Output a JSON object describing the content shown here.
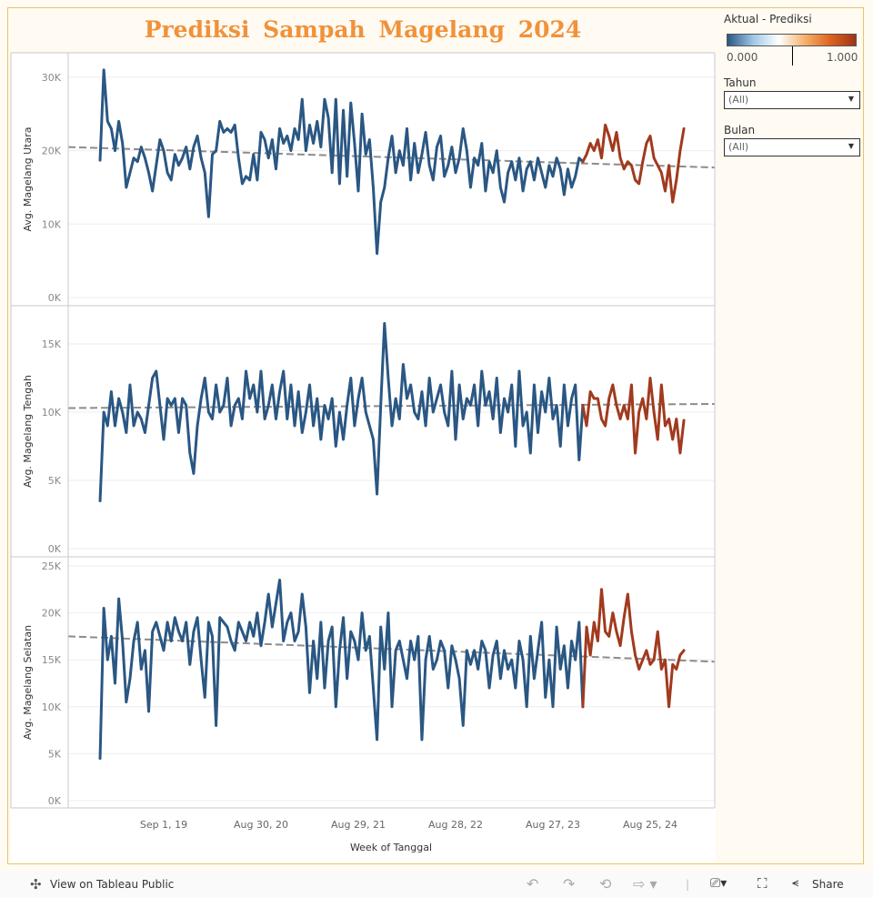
{
  "title": "Prediksi Sampah Magelang 2024",
  "legend": {
    "title": "Aktual - Prediksi",
    "min_label": "0.000",
    "max_label": "1.000",
    "marker_value": 0.5,
    "gradient": [
      "#2a5783",
      "#9fc6e6",
      "#ffffff",
      "#f7b26b",
      "#e0631f",
      "#9c3518"
    ]
  },
  "filters": [
    {
      "label": "Tahun",
      "value": "(All)"
    },
    {
      "label": "Bulan",
      "value": "(All)"
    }
  ],
  "toolbar": {
    "view_label": "View on Tableau Public",
    "share_label": "Share",
    "icons": [
      "tableau-logo-icon",
      "undo-icon",
      "redo-icon",
      "revert-icon",
      "refresh-icon",
      "download-icon",
      "fullscreen-icon",
      "share-icon"
    ]
  },
  "colors": {
    "actual": "#2a5783",
    "prediction": "#a13a1e",
    "trend": "#8c8c8c",
    "title": "#f0923a"
  },
  "chart_data": {
    "type": "line",
    "xlabel": "Week of Tanggal",
    "x_ticks": [
      {
        "label": "Sep 1, 19",
        "date": "2019-09-01"
      },
      {
        "label": "Aug 30, 20",
        "date": "2020-08-30"
      },
      {
        "label": "Aug 29, 21",
        "date": "2021-08-29"
      },
      {
        "label": "Aug 28, 22",
        "date": "2022-08-28"
      },
      {
        "label": "Aug 27, 23",
        "date": "2023-08-27"
      },
      {
        "label": "Aug 25, 24",
        "date": "2024-08-25"
      }
    ],
    "grid": true,
    "actual_dates": [
      "2019-01-06",
      "2019-01-20",
      "2019-02-03",
      "2019-02-17",
      "2019-03-03",
      "2019-03-17",
      "2019-03-31",
      "2019-04-14",
      "2019-04-28",
      "2019-05-12",
      "2019-05-26",
      "2019-06-09",
      "2019-06-23",
      "2019-07-07",
      "2019-07-21",
      "2019-08-04",
      "2019-08-18",
      "2019-09-01",
      "2019-09-15",
      "2019-09-29",
      "2019-10-13",
      "2019-10-27",
      "2019-11-10",
      "2019-11-24",
      "2019-12-08",
      "2019-12-22",
      "2020-01-05",
      "2020-01-19",
      "2020-02-02",
      "2020-02-16",
      "2020-03-01",
      "2020-03-15",
      "2020-03-29",
      "2020-04-12",
      "2020-04-26",
      "2020-05-10",
      "2020-05-24",
      "2020-06-07",
      "2020-06-21",
      "2020-07-05",
      "2020-07-19",
      "2020-08-02",
      "2020-08-16",
      "2020-08-30",
      "2020-09-13",
      "2020-09-27",
      "2020-10-11",
      "2020-10-25",
      "2020-11-08",
      "2020-11-22",
      "2020-12-06",
      "2020-12-20",
      "2021-01-03",
      "2021-01-17",
      "2021-01-31",
      "2021-02-14",
      "2021-02-28",
      "2021-03-14",
      "2021-03-28",
      "2021-04-11",
      "2021-04-25",
      "2021-05-09",
      "2021-05-23",
      "2021-06-06",
      "2021-06-20",
      "2021-07-04",
      "2021-07-18",
      "2021-08-01",
      "2021-08-15",
      "2021-08-29",
      "2021-09-12",
      "2021-09-26",
      "2021-10-10",
      "2021-10-24",
      "2021-11-07",
      "2021-11-21",
      "2021-12-05",
      "2021-12-19",
      "2022-01-02",
      "2022-01-16",
      "2022-01-30",
      "2022-02-13",
      "2022-02-27",
      "2022-03-13",
      "2022-03-27",
      "2022-04-10",
      "2022-04-24",
      "2022-05-08",
      "2022-05-22",
      "2022-06-05",
      "2022-06-19",
      "2022-07-03",
      "2022-07-17",
      "2022-07-31",
      "2022-08-14",
      "2022-08-28",
      "2022-09-11",
      "2022-09-25",
      "2022-10-09",
      "2022-10-23",
      "2022-11-06",
      "2022-11-20",
      "2022-12-04",
      "2022-12-18",
      "2023-01-01",
      "2023-01-15",
      "2023-01-29",
      "2023-02-12",
      "2023-02-26",
      "2023-03-12",
      "2023-03-26",
      "2023-04-09",
      "2023-04-23",
      "2023-05-07",
      "2023-05-21",
      "2023-06-04",
      "2023-06-18",
      "2023-07-02",
      "2023-07-16",
      "2023-07-30",
      "2023-08-13",
      "2023-08-27",
      "2023-09-10",
      "2023-09-24",
      "2023-10-08",
      "2023-10-22",
      "2023-11-05",
      "2023-11-19",
      "2023-12-03",
      "2023-12-17"
    ],
    "prediction_dates": [
      "2023-12-31",
      "2024-01-14",
      "2024-01-28",
      "2024-02-11",
      "2024-02-25",
      "2024-03-10",
      "2024-03-24",
      "2024-04-07",
      "2024-04-21",
      "2024-05-05",
      "2024-05-19",
      "2024-06-02",
      "2024-06-16",
      "2024-06-30",
      "2024-07-14",
      "2024-07-28",
      "2024-08-11",
      "2024-08-25",
      "2024-09-08",
      "2024-09-22",
      "2024-10-06",
      "2024-10-20",
      "2024-11-03",
      "2024-11-17",
      "2024-12-01",
      "2024-12-15",
      "2024-12-29"
    ],
    "panels": [
      {
        "ylabel": "Avg. Magelang Utara",
        "ylim": [
          0,
          32000
        ],
        "y_ticks": [
          {
            "label": "0K",
            "value": 0
          },
          {
            "label": "10K",
            "value": 10000
          },
          {
            "label": "20K",
            "value": 20000
          },
          {
            "label": "30K",
            "value": 30000
          }
        ],
        "trend": {
          "start": 20500,
          "end": 17700
        },
        "actual": [
          18700,
          31000,
          24000,
          23000,
          20000,
          24000,
          21000,
          15000,
          17000,
          19000,
          18500,
          20500,
          19000,
          17000,
          14500,
          18000,
          21500,
          20000,
          17000,
          16000,
          19500,
          18000,
          19000,
          20500,
          17500,
          20500,
          22000,
          19000,
          17000,
          11000,
          19500,
          20000,
          24000,
          22500,
          23000,
          22500,
          23500,
          19000,
          15500,
          16500,
          16000,
          19500,
          16000,
          22500,
          21500,
          19000,
          21500,
          17500,
          23000,
          21000,
          22000,
          20000,
          23000,
          21500,
          27000,
          20000,
          23500,
          21000,
          24000,
          20500,
          27000,
          24500,
          17000,
          27000,
          15500,
          25500,
          16500,
          26500,
          21000,
          14500,
          25000,
          19500,
          21500,
          15000,
          6000,
          13000,
          15000,
          19000,
          22000,
          17000,
          20000,
          18000,
          23000,
          16000,
          21000,
          17000,
          19500,
          22500,
          18000,
          16000,
          20500,
          22000,
          16500,
          18000,
          20500,
          17000,
          19000,
          23000,
          20000,
          15000,
          19000,
          18000,
          21000,
          14500,
          18500,
          17000,
          20000,
          15000,
          13000,
          17000,
          18500,
          16000,
          19000,
          14500,
          17500,
          18500,
          16000,
          19000,
          17000,
          15000,
          18000,
          16500,
          19000,
          17500,
          14000,
          17500,
          15000,
          16500,
          19000,
          18500
        ],
        "prediction": [
          19500,
          21000,
          20000,
          21500,
          19000,
          23500,
          22000,
          20000,
          22500,
          19000,
          17500,
          18500,
          18000,
          16000,
          15500,
          18500,
          21000,
          22000,
          19000,
          18000,
          17000,
          14500,
          18000,
          13000,
          16000,
          20000,
          23000
        ]
      },
      {
        "ylabel": "Avg. Magelang Tengah",
        "ylim": [
          0,
          17000
        ],
        "y_ticks": [
          {
            "label": "0K",
            "value": 0
          },
          {
            "label": "5K",
            "value": 5000
          },
          {
            "label": "10K",
            "value": 10000
          },
          {
            "label": "15K",
            "value": 15000
          }
        ],
        "trend": {
          "start": 10300,
          "end": 10600
        },
        "actual": [
          3500,
          10000,
          9000,
          11500,
          9000,
          11000,
          10000,
          8500,
          12000,
          9000,
          10000,
          9500,
          8500,
          10500,
          12500,
          13000,
          10500,
          8000,
          11000,
          10500,
          11000,
          8500,
          11000,
          10500,
          7000,
          5500,
          9000,
          11000,
          12500,
          10000,
          9500,
          12000,
          10000,
          10500,
          12500,
          9000,
          10500,
          11000,
          9500,
          13000,
          11000,
          12000,
          10000,
          13000,
          9500,
          10500,
          12000,
          9500,
          11500,
          13000,
          9500,
          12000,
          9000,
          11500,
          8500,
          10000,
          12000,
          9000,
          11000,
          8000,
          10500,
          9500,
          11000,
          7500,
          10000,
          8000,
          10500,
          12500,
          9000,
          11000,
          12500,
          10000,
          9000,
          8000,
          4000,
          10500,
          16500,
          12500,
          9000,
          11000,
          9500,
          13500,
          11000,
          12000,
          10000,
          9500,
          11500,
          9000,
          12500,
          10000,
          11000,
          12000,
          10000,
          9000,
          13000,
          8000,
          12000,
          9500,
          11000,
          10500,
          12000,
          9000,
          13000,
          10500,
          11500,
          9500,
          12500,
          8500,
          11000,
          10000,
          12000,
          7500,
          13000,
          9000,
          10000,
          7000,
          12000,
          8500,
          11500,
          10000,
          12500,
          9500,
          10500,
          7500,
          12000,
          9000,
          11000,
          12000,
          6500,
          10500
        ],
        "prediction": [
          9000,
          11500,
          11000,
          11000,
          9500,
          9000,
          11000,
          12000,
          10500,
          9500,
          10500,
          9500,
          12000,
          7000,
          10000,
          11000,
          9500,
          12500,
          10000,
          8000,
          12000,
          9000,
          9500,
          8000,
          9500,
          7000,
          9400
        ]
      },
      {
        "ylabel": "Avg. Magelang Selatan",
        "ylim": [
          0,
          25000
        ],
        "y_ticks": [
          {
            "label": "0K",
            "value": 0
          },
          {
            "label": "5K",
            "value": 5000
          },
          {
            "label": "10K",
            "value": 10000
          },
          {
            "label": "15K",
            "value": 15000
          },
          {
            "label": "20K",
            "value": 20000
          },
          {
            "label": "25K",
            "value": 25000
          }
        ],
        "trend": {
          "start": 17500,
          "end": 14800
        },
        "actual": [
          4500,
          20500,
          15000,
          17500,
          12500,
          21500,
          17000,
          10500,
          13000,
          17000,
          19000,
          14000,
          16000,
          9500,
          18000,
          19000,
          17500,
          16000,
          19000,
          17000,
          19500,
          18000,
          17000,
          19000,
          14500,
          18000,
          19500,
          15000,
          11000,
          19000,
          17500,
          8000,
          19500,
          19000,
          18500,
          17000,
          16000,
          19000,
          18000,
          17000,
          19000,
          17500,
          20000,
          16500,
          19000,
          22000,
          18500,
          21000,
          23500,
          17000,
          19000,
          20000,
          17000,
          18000,
          22000,
          18500,
          11500,
          17000,
          13000,
          19000,
          12000,
          17000,
          18500,
          10000,
          16000,
          19500,
          13000,
          18000,
          17000,
          15000,
          20000,
          16000,
          17500,
          12000,
          6500,
          18500,
          14000,
          20000,
          10000,
          16000,
          17000,
          15000,
          13000,
          17000,
          15000,
          17500,
          6500,
          15000,
          17500,
          14000,
          15000,
          17000,
          16000,
          12000,
          16500,
          15000,
          13000,
          8000,
          16000,
          14500,
          16000,
          14000,
          17000,
          16000,
          12000,
          15500,
          17000,
          13000,
          16000,
          14000,
          15000,
          12000,
          17000,
          15000,
          10000,
          17500,
          13000,
          16000,
          19000,
          11000,
          15000,
          10000,
          18500,
          14000,
          16500,
          12000,
          17000,
          15000,
          19000,
          10000
        ],
        "prediction": [
          18500,
          15500,
          19000,
          17000,
          22500,
          18000,
          17500,
          20000,
          18000,
          16500,
          19500,
          22000,
          18000,
          15500,
          14000,
          15000,
          16000,
          14500,
          15000,
          18000,
          14000,
          15000,
          10000,
          14500,
          14000,
          15500,
          16000
        ]
      }
    ]
  }
}
